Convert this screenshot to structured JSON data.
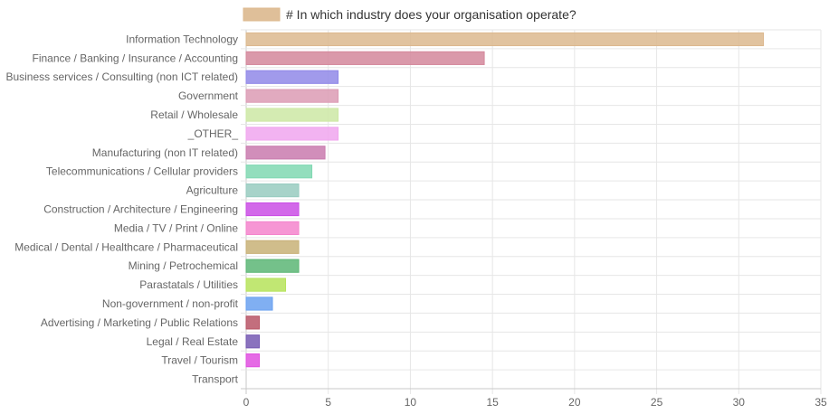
{
  "chart_data": {
    "type": "bar",
    "orientation": "horizontal",
    "legend": {
      "label": "# In which industry does your organisation operate?",
      "color": "#dcb88e",
      "placement": "top-center"
    },
    "categories": [
      "Information Technology",
      "Finance / Banking / Insurance / Accounting",
      "Business services / Consulting (non ICT related)",
      "Government",
      "Retail / Wholesale",
      "_OTHER_",
      "Manufacturing (non IT related)",
      "Telecommunications / Cellular providers",
      "Agriculture",
      "Construction / Architecture / Engineering",
      "Media / TV / Print / Online",
      "Medical / Dental / Healthcare / Pharmaceutical",
      "Mining / Petrochemical",
      "Parastatals / Utilities",
      "Non-government / non-profit",
      "Advertising / Marketing / Public Relations",
      "Legal / Real Estate",
      "Travel / Tourism",
      "Transport"
    ],
    "values": [
      31.5,
      14.5,
      5.6,
      5.6,
      5.6,
      5.6,
      4.8,
      4.0,
      3.2,
      3.2,
      3.2,
      3.2,
      3.2,
      2.4,
      1.6,
      0.8,
      0.8,
      0.8,
      0
    ],
    "colors": [
      "#dcb88e",
      "#d4879b",
      "#9188e8",
      "#dc9bb4",
      "#cde8a4",
      "#f0a6ee",
      "#c97aae",
      "#80d8b2",
      "#98cbc0",
      "#ca4ee5",
      "#f484cc",
      "#c8b177",
      "#5cb675",
      "#b6e35a",
      "#6aa1f0",
      "#b85566",
      "#7659b3",
      "#e050e0",
      "#cccccc"
    ],
    "x_ticks": [
      "0",
      "5",
      "10",
      "15",
      "20",
      "25",
      "30",
      "35"
    ],
    "xlim": [
      0,
      35
    ],
    "grid": true,
    "title": "",
    "xlabel": "",
    "ylabel": ""
  }
}
